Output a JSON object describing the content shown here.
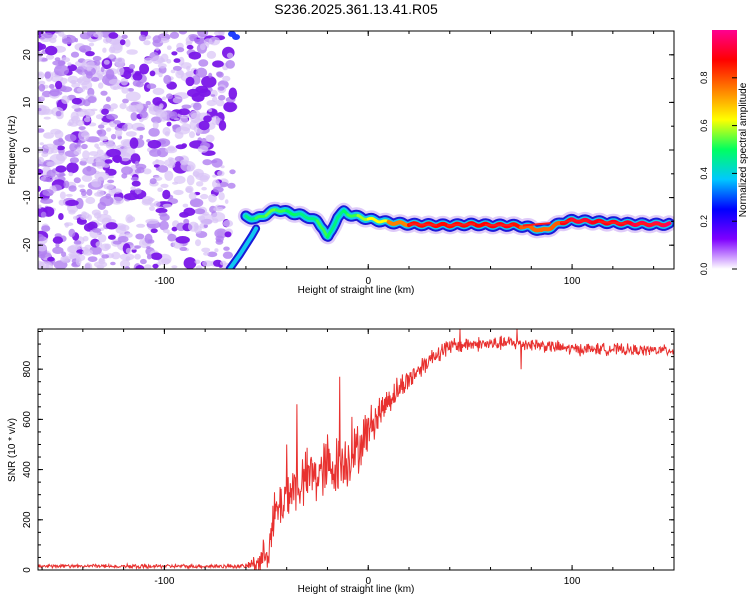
{
  "title": "S236.2025.361.13.41.R05",
  "colors": {
    "snr_line": "#e8312f",
    "noise_purple": "#8a2be2",
    "background": "#ffffff",
    "axis": "#000000"
  },
  "chart_data": [
    {
      "type": "heatmap",
      "name": "spectrogram",
      "xlabel": "Height of straight line (km)",
      "ylabel": "Frequency (Hz)",
      "xlim": [
        -162,
        150
      ],
      "ylim": [
        -25,
        25
      ],
      "xticks": [
        -100,
        0,
        100
      ],
      "yticks": [
        -20,
        -10,
        0,
        10,
        20
      ],
      "xtick_labels": [
        "-100",
        "0",
        "100"
      ],
      "ytick_labels": [
        "-20",
        "-10",
        "0",
        "10",
        "20"
      ],
      "colorbar": {
        "label": "Normalized spectral amplitude",
        "range": [
          0,
          1
        ],
        "ticks": [
          0,
          0.2,
          0.4,
          0.6,
          0.8
        ],
        "tick_labels": [
          "0.0",
          "0.2",
          "0.4",
          "0.6",
          "0.8"
        ],
        "stops": [
          "#ffffff",
          "#7f00ff",
          "#0000ff",
          "#00c8ff",
          "#00ff60",
          "#ffff00",
          "#ff8000",
          "#ff0000",
          "#ff0090"
        ]
      },
      "noise_region_x": [
        -162,
        -65
      ],
      "track": {
        "x": [
          -60,
          -55,
          -50,
          -45,
          -40,
          -35,
          -30,
          -25,
          -22,
          -20,
          -18,
          -15,
          -12,
          -10,
          -5,
          0,
          10,
          20,
          30,
          40,
          50,
          60,
          70,
          75,
          80,
          85,
          90,
          95,
          100,
          110,
          120,
          130,
          140,
          148
        ],
        "y": [
          -14,
          -14.5,
          -13.5,
          -12.5,
          -13,
          -13.5,
          -14,
          -15,
          -16.5,
          -18.5,
          -17,
          -14,
          -13,
          -13.5,
          -14,
          -14.5,
          -15.2,
          -15.6,
          -15.7,
          -15.8,
          -15.6,
          -15.8,
          -15.8,
          -16,
          -16.3,
          -17,
          -16.2,
          -15.2,
          -14.8,
          -15,
          -15.3,
          -15.5,
          -15.6,
          -15.6
        ],
        "amplitude": [
          0.45,
          0.5,
          0.55,
          0.55,
          0.5,
          0.5,
          0.45,
          0.5,
          0.55,
          0.5,
          0.5,
          0.45,
          0.5,
          0.5,
          0.55,
          0.6,
          0.65,
          0.85,
          0.88,
          0.86,
          0.87,
          0.88,
          0.9,
          0.82,
          0.75,
          0.8,
          0.75,
          0.82,
          0.95,
          0.9,
          0.88,
          0.92,
          0.95,
          0.95
        ]
      },
      "rising_branch": {
        "x": [
          -68,
          -63,
          -60,
          -57,
          -55
        ],
        "y": [
          -25,
          -22,
          -20,
          -18,
          -16.5
        ]
      }
    },
    {
      "type": "line",
      "name": "snr",
      "xlabel": "Height of straight line (km)",
      "ylabel": "SNR (10 * v/v)",
      "xlim": [
        -162,
        150
      ],
      "ylim": [
        0,
        960
      ],
      "xticks": [
        -100,
        0,
        100
      ],
      "yticks": [
        0,
        200,
        400,
        600,
        800
      ],
      "xtick_labels": [
        "-100",
        "0",
        "100"
      ],
      "ytick_labels": [
        "0",
        "200",
        "400",
        "600",
        "800"
      ],
      "envelope": {
        "x": [
          -162,
          -60,
          -52,
          -48,
          -45,
          -40,
          -35,
          -30,
          -25,
          -20,
          -15,
          -10,
          -5,
          0,
          5,
          10,
          15,
          20,
          25,
          30,
          35,
          40,
          50,
          60,
          70,
          80,
          90,
          100,
          110,
          120,
          130,
          150
        ],
        "y": [
          15,
          15,
          40,
          120,
          230,
          300,
          340,
          360,
          380,
          400,
          420,
          440,
          480,
          560,
          620,
          680,
          720,
          760,
          800,
          840,
          870,
          890,
          900,
          900,
          905,
          900,
          890,
          880,
          880,
          880,
          875,
          875
        ]
      },
      "noise_amplitude": {
        "x": [
          -162,
          -60,
          -50,
          -40,
          -20,
          -5,
          10,
          30,
          50,
          150
        ],
        "amp": [
          8,
          10,
          90,
          130,
          150,
          120,
          70,
          45,
          35,
          25
        ]
      },
      "spikes": [
        {
          "x": -46,
          "y": 310
        },
        {
          "x": -40,
          "y": 500
        },
        {
          "x": -35,
          "y": 660
        },
        {
          "x": -28,
          "y": 450
        },
        {
          "x": -20,
          "y": 540
        },
        {
          "x": -14,
          "y": 770
        },
        {
          "x": -8,
          "y": 610
        },
        {
          "x": 38,
          "y": 850
        },
        {
          "x": 45,
          "y": 960
        },
        {
          "x": 73,
          "y": 960
        },
        {
          "x": 75,
          "y": 800
        }
      ]
    }
  ]
}
